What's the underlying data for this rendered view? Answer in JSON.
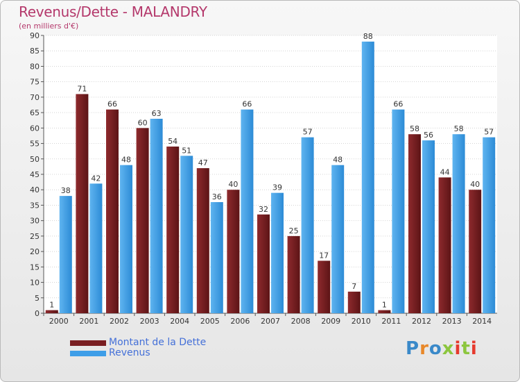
{
  "title": "Revenus/Dette - MALANDRY",
  "subtitle": "(en milliers d'€)",
  "brand": "Proxiti",
  "colors": {
    "dette": "#7a1f22",
    "revenus": "#3e9ee8",
    "title": "#b4386b",
    "legend_text": "#4470d8"
  },
  "chart_data": {
    "type": "bar",
    "categories": [
      "2000",
      "2001",
      "2002",
      "2003",
      "2004",
      "2005",
      "2006",
      "2007",
      "2008",
      "2009",
      "2010",
      "2011",
      "2012",
      "2013",
      "2014"
    ],
    "series": [
      {
        "name": "Montant de la Dette",
        "values": [
          1,
          71,
          66,
          60,
          54,
          47,
          40,
          32,
          25,
          17,
          7,
          1,
          58,
          44,
          40
        ]
      },
      {
        "name": "Revenus",
        "values": [
          38,
          42,
          48,
          63,
          51,
          36,
          66,
          39,
          57,
          48,
          88,
          66,
          56,
          58,
          57
        ]
      }
    ],
    "ylim": [
      0,
      90
    ],
    "yticks": [
      0,
      5,
      10,
      15,
      20,
      25,
      30,
      35,
      40,
      45,
      50,
      55,
      60,
      65,
      70,
      75,
      80,
      85,
      90
    ],
    "grid": true,
    "legend_position": "bottom-left"
  }
}
